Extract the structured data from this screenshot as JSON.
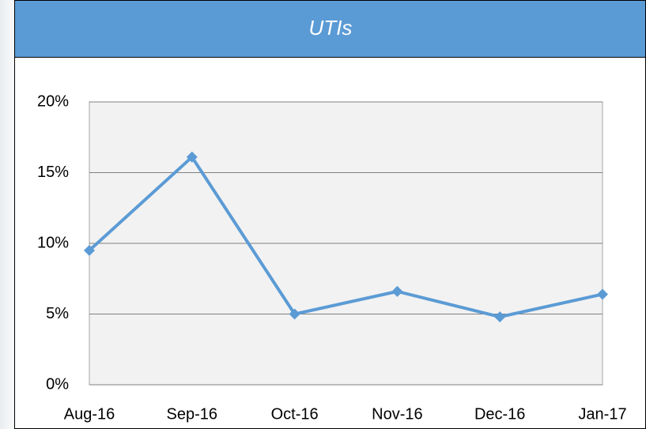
{
  "chart_data": {
    "type": "line",
    "title": "UTIs",
    "categories": [
      "Aug-16",
      "Sep-16",
      "Oct-16",
      "Nov-16",
      "Dec-16",
      "Jan-17"
    ],
    "series": [
      {
        "name": "UTIs",
        "color": "#5b9bd5",
        "values": [
          9.5,
          16.1,
          5.0,
          6.6,
          4.8,
          6.4
        ]
      }
    ],
    "ylim": [
      0,
      20
    ],
    "yticks": [
      {
        "value": 0,
        "label": "0%"
      },
      {
        "value": 5,
        "label": "5%"
      },
      {
        "value": 10,
        "label": "10%"
      },
      {
        "value": 15,
        "label": "15%"
      },
      {
        "value": 20,
        "label": "20%"
      }
    ],
    "grid": true
  }
}
